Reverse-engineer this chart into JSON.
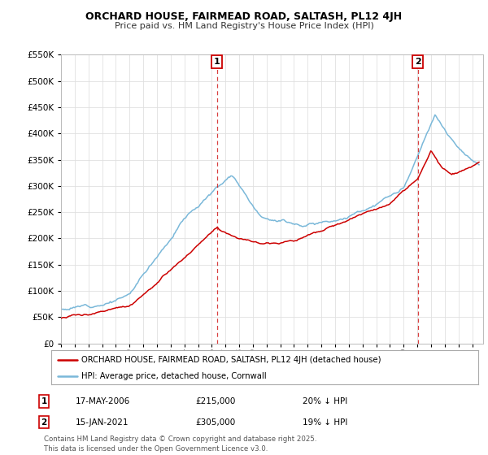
{
  "title": "ORCHARD HOUSE, FAIRMEAD ROAD, SALTASH, PL12 4JH",
  "subtitle": "Price paid vs. HM Land Registry's House Price Index (HPI)",
  "legend_line1": "ORCHARD HOUSE, FAIRMEAD ROAD, SALTASH, PL12 4JH (detached house)",
  "legend_line2": "HPI: Average price, detached house, Cornwall",
  "annotation1": {
    "num": "1",
    "date": "17-MAY-2006",
    "price": "£215,000",
    "note": "20% ↓ HPI"
  },
  "annotation2": {
    "num": "2",
    "date": "15-JAN-2021",
    "price": "£305,000",
    "note": "19% ↓ HPI"
  },
  "vline1_x": 2006.38,
  "vline2_x": 2021.04,
  "hpi_color": "#7ab8d9",
  "sale_color": "#cc0000",
  "vline_color": "#cc0000",
  "ylim_max": 550000,
  "ytick_step": 50000,
  "xlim_start": 1995.0,
  "xlim_end": 2025.8,
  "footer": "Contains HM Land Registry data © Crown copyright and database right 2025.\nThis data is licensed under the Open Government Licence v3.0.",
  "background_color": "#ffffff",
  "grid_color": "#e0e0e0"
}
